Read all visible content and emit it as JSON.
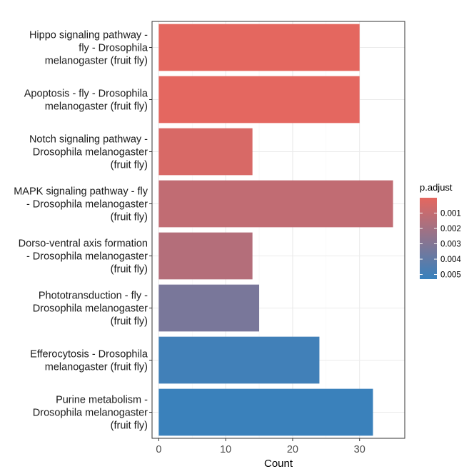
{
  "chart_data": {
    "type": "bar",
    "orientation": "horizontal",
    "categories": [
      [
        "Hippo signaling pathway -",
        "fly - Drosophila",
        "melanogaster (fruit fly)"
      ],
      [
        "Apoptosis - fly - Drosophila",
        "melanogaster (fruit fly)"
      ],
      [
        "Notch signaling pathway -",
        "Drosophila melanogaster",
        "(fruit fly)"
      ],
      [
        "MAPK signaling pathway - fly",
        "- Drosophila melanogaster",
        "(fruit fly)"
      ],
      [
        "Dorso-ventral axis formation",
        "- Drosophila melanogaster",
        "(fruit fly)"
      ],
      [
        "Phototransduction - fly -",
        "Drosophila melanogaster",
        "(fruit fly)"
      ],
      [
        "Efferocytosis - Drosophila",
        "melanogaster (fruit fly)"
      ],
      [
        "Purine metabolism -",
        "Drosophila melanogaster",
        "(fruit fly)"
      ]
    ],
    "values": [
      30,
      30,
      14,
      35,
      14,
      15,
      24,
      32
    ],
    "p_adjust": [
      2e-05,
      3e-05,
      0.0004,
      0.0011,
      0.0015,
      0.0033,
      0.005,
      0.0052
    ],
    "xlabel": "Count",
    "xlim": [
      -1,
      36.75
    ],
    "xticks": [
      0,
      10,
      20,
      30
    ],
    "grid": true,
    "legend": {
      "title": "p.adjust",
      "placement": "right",
      "ticks": [
        0.001,
        0.002,
        0.003,
        0.004,
        0.005
      ],
      "tick_labels": [
        "0.001",
        "0.002",
        "0.003",
        "0.004",
        "0.005"
      ],
      "range": [
        0.0,
        0.0053
      ],
      "low_color": "#e5675f",
      "high_color": "#3781bd"
    }
  }
}
